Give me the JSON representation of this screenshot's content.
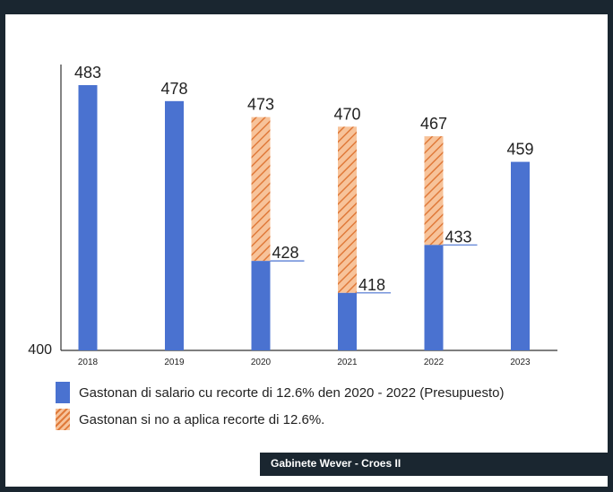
{
  "chart_data": {
    "type": "bar",
    "categories": [
      "2018",
      "2019",
      "2020",
      "2021",
      "2022",
      "2023"
    ],
    "series": [
      {
        "name": "Gastonan di salario cu recorte di 12.6% den 2020 - 2022 (Presupuesto)",
        "values": [
          483,
          478,
          428,
          418,
          433,
          459
        ],
        "color": "#4a72d0"
      },
      {
        "name": "Gastonan si no a aplica recorte di 12.6%.",
        "values": [
          null,
          null,
          473,
          470,
          467,
          null
        ],
        "color": "#e07a3a"
      }
    ],
    "bar_labels": [
      "483",
      "478",
      "473",
      "470",
      "467",
      "459"
    ],
    "inner_labels": [
      null,
      null,
      "428",
      "418",
      "433",
      null
    ],
    "y_tick_label": "400",
    "ylim": [
      400,
      490
    ],
    "title": "",
    "xlabel": "",
    "ylabel": "",
    "grid": false,
    "legend_position": "bottom"
  },
  "legend": {
    "items": [
      {
        "label": "Gastonan di salario cu recorte di 12.6% den 2020 - 2022 (Presupuesto)",
        "style": "solid"
      },
      {
        "label": "Gastonan si no a aplica recorte di 12.6%.",
        "style": "hatched"
      }
    ]
  },
  "footer": {
    "text": "Gabinete Wever - Croes II"
  },
  "colors": {
    "frame": "#1a2630",
    "bar": "#4a72d0",
    "hatch_fill": "#f7c39a",
    "hatch_stroke": "#e07a3a",
    "label_underline": "#4a72d0"
  }
}
